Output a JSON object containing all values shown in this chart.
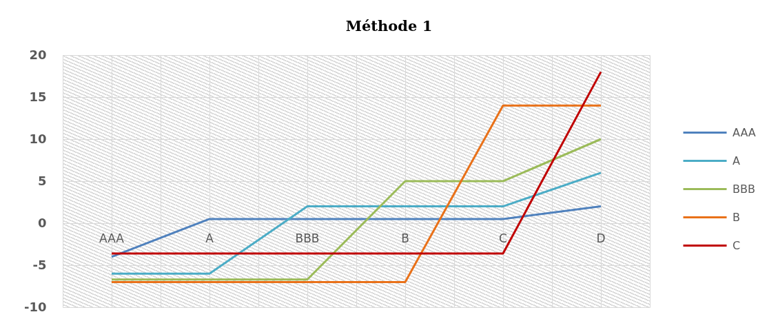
{
  "chart_data": {
    "type": "line",
    "title": "Méthode 1",
    "categories": [
      "AAA",
      "A",
      "BBB",
      "B",
      "C",
      "D"
    ],
    "series": [
      {
        "name": "AAA",
        "color": "#4f81bd",
        "values": [
          -4,
          0.5,
          0.5,
          0.5,
          0.5,
          2
        ]
      },
      {
        "name": "A",
        "color": "#4bacc6",
        "values": [
          -6,
          -6,
          2,
          2,
          2,
          6
        ]
      },
      {
        "name": "BBB",
        "color": "#9bbb59",
        "values": [
          -6.7,
          -6.7,
          -6.7,
          5,
          5,
          10
        ]
      },
      {
        "name": "B",
        "color": "#e97119",
        "values": [
          -7,
          -7,
          -7,
          -7,
          14,
          14
        ]
      },
      {
        "name": "C",
        "color": "#c00000",
        "values": [
          -3.6,
          -3.6,
          -3.6,
          -3.6,
          -3.6,
          18
        ]
      }
    ],
    "ylim": [
      -10,
      20
    ],
    "yticks": [
      -10,
      -5,
      0,
      5,
      10,
      15,
      20
    ],
    "grid": true,
    "legend": "right"
  }
}
